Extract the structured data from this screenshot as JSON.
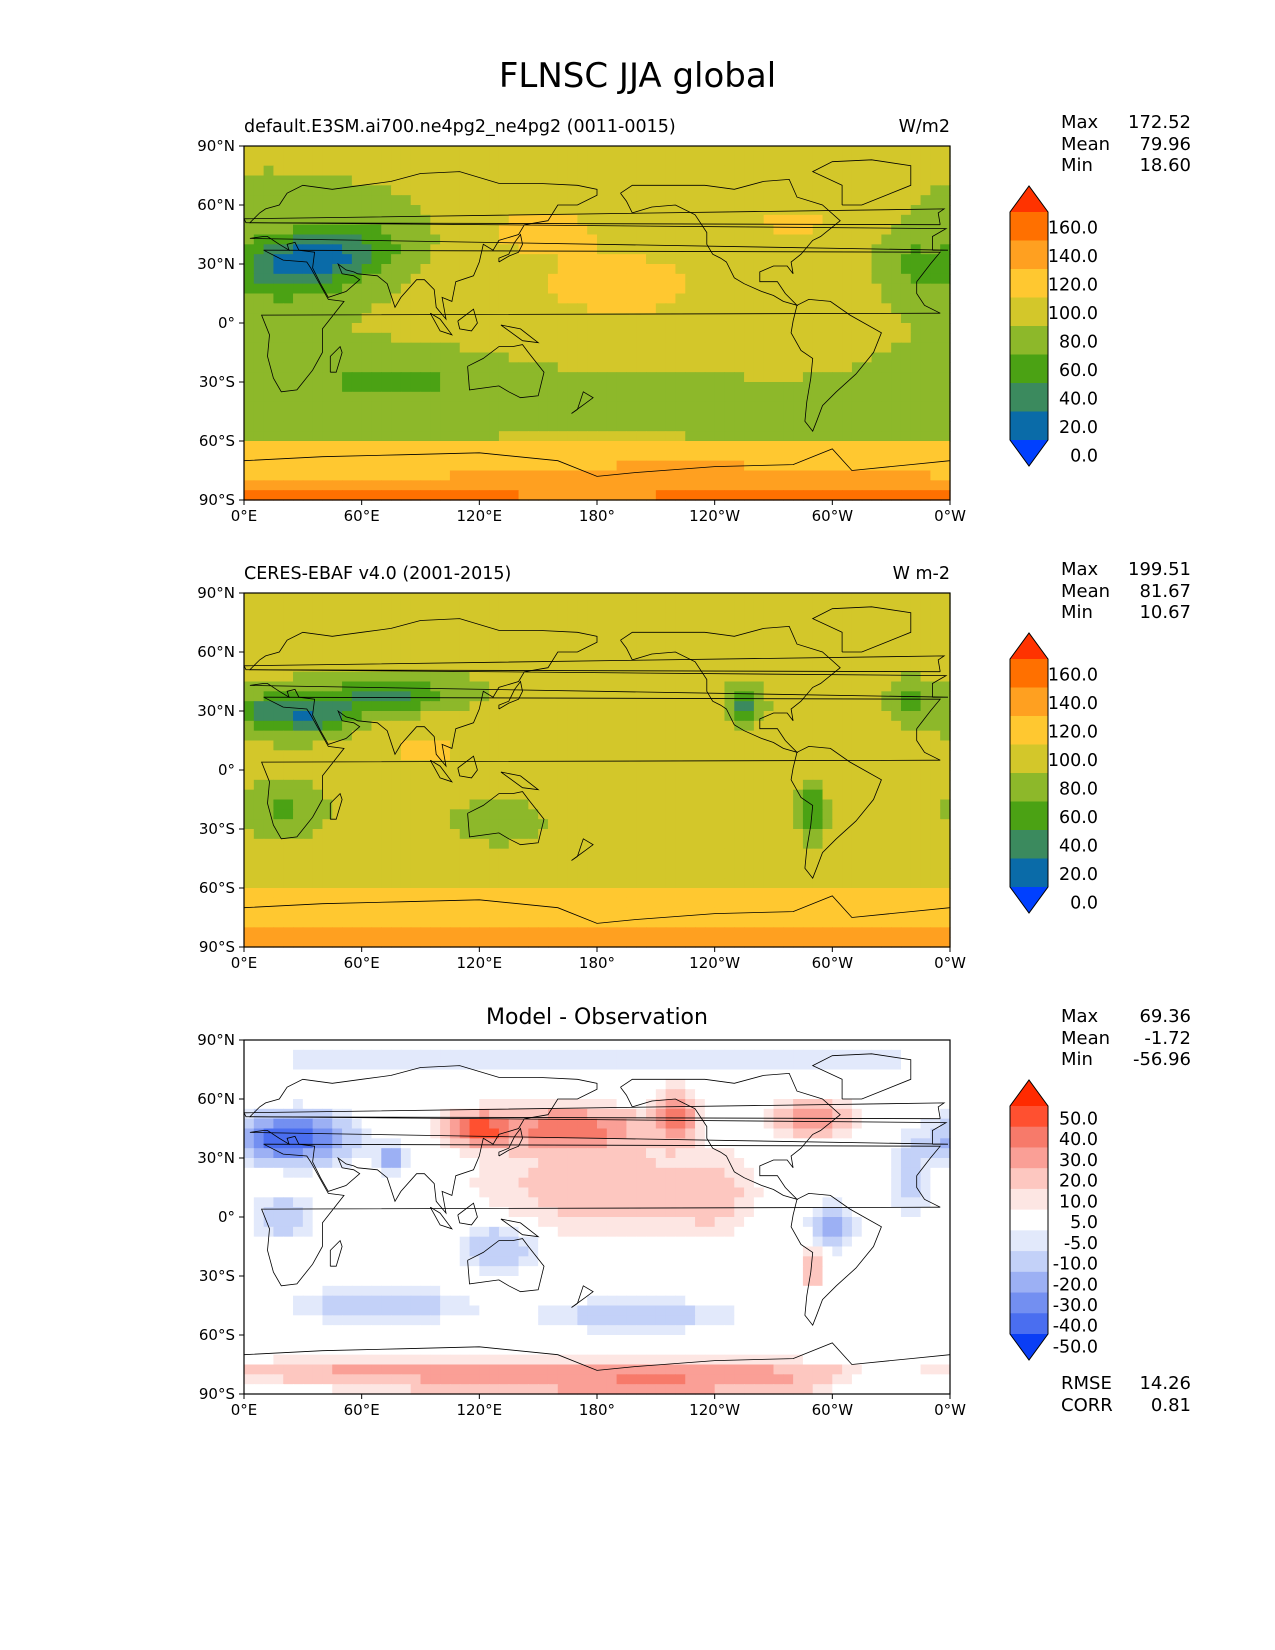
{
  "title": "FLNSC JJA global",
  "chart_data": [
    {
      "type": "heatmap",
      "title": "default.E3SM.ai700.ne4pg2_ne4pg2 (0011-0015)",
      "units": "W/m2",
      "xlabels": [
        "0°E",
        "60°E",
        "120°E",
        "180°",
        "120°W",
        "60°W",
        "0°W"
      ],
      "ylabels": [
        "90°N",
        "60°N",
        "30°N",
        "0°",
        "30°S",
        "60°S",
        "90°S"
      ],
      "xlim": [
        0,
        360
      ],
      "ylim": [
        -90,
        90
      ],
      "stats": {
        "max": "172.52",
        "mean": "79.96",
        "min": "18.60"
      },
      "colorbar": {
        "levels": [
          "160.0",
          "140.0",
          "120.0",
          "100.0",
          "80.0",
          "60.0",
          "40.0",
          "20.0",
          "0.0"
        ],
        "colors": [
          "#ff3300",
          "#ff7000",
          "#ffa020",
          "#ffc830",
          "#d3c72a",
          "#8db82a",
          "#4ba214",
          "#3b8a5e",
          "#0a6ba8",
          "#0040ff"
        ]
      }
    },
    {
      "type": "heatmap",
      "title": "CERES-EBAF v4.0 (2001-2015)",
      "units": "W m-2",
      "xlabels": [
        "0°E",
        "60°E",
        "120°E",
        "180°",
        "120°W",
        "60°W",
        "0°W"
      ],
      "ylabels": [
        "90°N",
        "60°N",
        "30°N",
        "0°",
        "30°S",
        "60°S",
        "90°S"
      ],
      "xlim": [
        0,
        360
      ],
      "ylim": [
        -90,
        90
      ],
      "stats": {
        "max": "199.51",
        "mean": "81.67",
        "min": "10.67"
      },
      "colorbar": {
        "levels": [
          "160.0",
          "140.0",
          "120.0",
          "100.0",
          "80.0",
          "60.0",
          "40.0",
          "20.0",
          "0.0"
        ],
        "colors": [
          "#ff3300",
          "#ff7000",
          "#ffa020",
          "#ffc830",
          "#d3c72a",
          "#8db82a",
          "#4ba214",
          "#3b8a5e",
          "#0a6ba8",
          "#0040ff"
        ]
      }
    },
    {
      "type": "heatmap",
      "title": "Model - Observation",
      "xlabels": [
        "0°E",
        "60°E",
        "120°E",
        "180°",
        "120°W",
        "60°W",
        "0°W"
      ],
      "ylabels": [
        "90°N",
        "60°N",
        "30°N",
        "0°",
        "30°S",
        "60°S",
        "90°S"
      ],
      "xlim": [
        0,
        360
      ],
      "ylim": [
        -90,
        90
      ],
      "stats": {
        "max": "69.36",
        "mean": "-1.72",
        "min": "-56.96",
        "rmse": "14.26",
        "corr": "0.81"
      },
      "colorbar": {
        "levels": [
          "50.0",
          "40.0",
          "30.0",
          "20.0",
          "10.0",
          "5.0",
          "-5.0",
          "-10.0",
          "-20.0",
          "-30.0",
          "-40.0",
          "-50.0"
        ],
        "colors": [
          "#ff2a00",
          "#ff5030",
          "#f77a6a",
          "#fa9f96",
          "#fdc7c0",
          "#fde6e3",
          "#ffffff",
          "#e2e9fb",
          "#c3d1f8",
          "#9cb0f4",
          "#738ff1",
          "#4a6ef0",
          "#0a3ef5"
        ]
      }
    }
  ]
}
